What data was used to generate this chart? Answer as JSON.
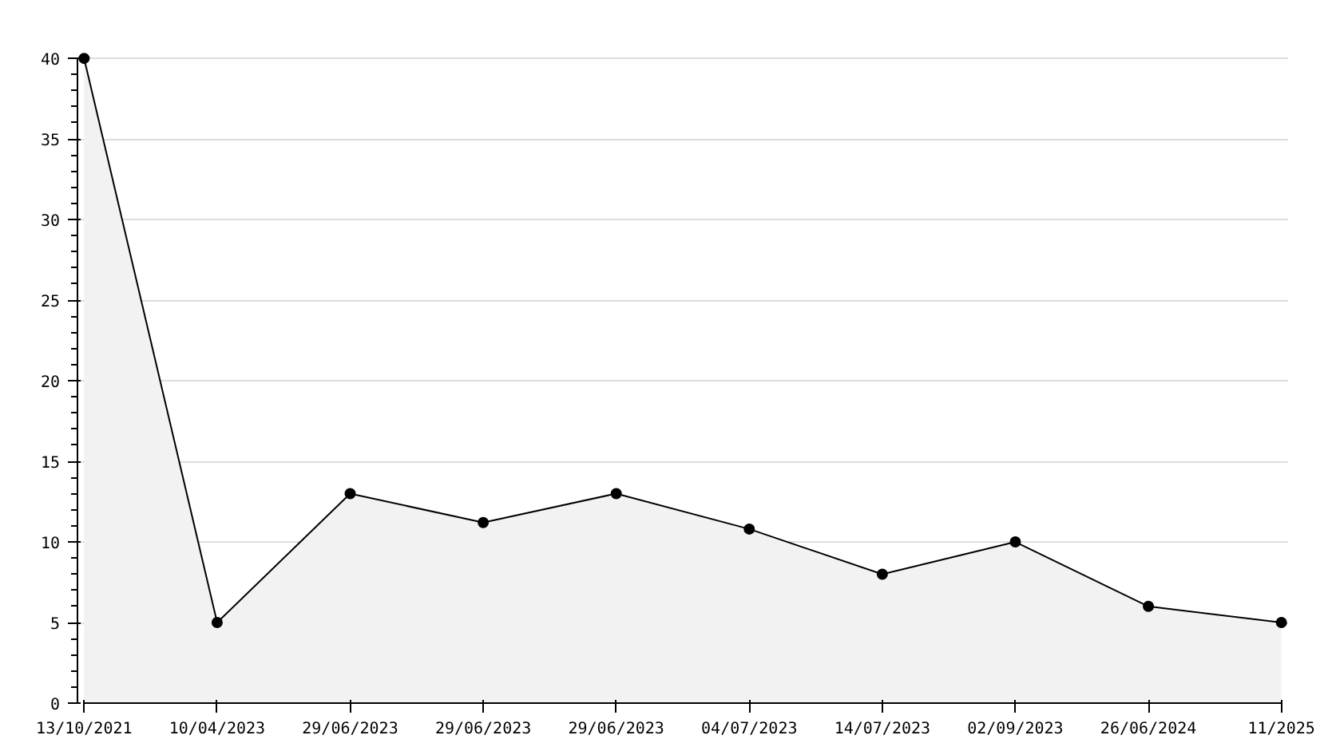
{
  "chart_data": {
    "type": "area",
    "categories": [
      "13/10/2021",
      "10/04/2023",
      "29/06/2023",
      "29/06/2023",
      "29/06/2023",
      "04/07/2023",
      "14/07/2023",
      "02/09/2023",
      "26/06/2024",
      "11/2025"
    ],
    "series": [
      {
        "color": "#000000",
        "values": [
          40,
          5,
          13,
          11.2,
          13,
          10.8,
          8,
          10,
          6,
          5
        ]
      }
    ],
    "ylim": [
      0,
      40
    ],
    "yticks": [
      0,
      5,
      10,
      15,
      20,
      25,
      30,
      35,
      40
    ],
    "grid": "y",
    "marker": "circle",
    "line_style": "solid"
  }
}
